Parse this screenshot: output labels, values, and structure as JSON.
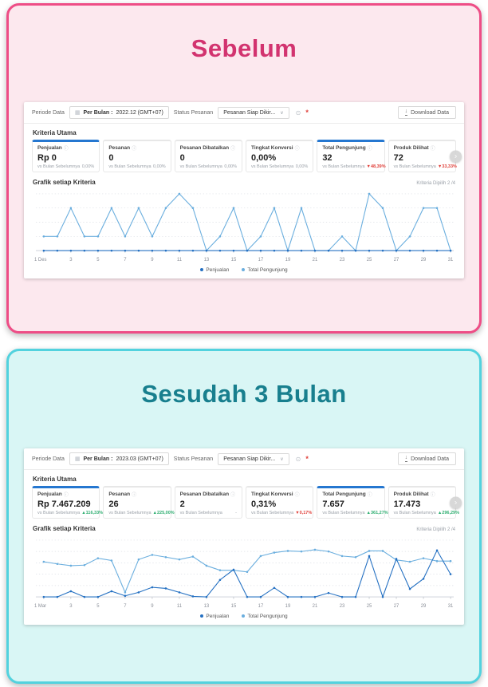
{
  "icons": {
    "calendar": "▦",
    "dropdown": "∨",
    "help": "⊙",
    "required": "*",
    "download": "↓",
    "chevron_right": "›",
    "info": "ⓘ"
  },
  "colors": {
    "before_border": "#ee4d86",
    "before_bg": "#fce8ee",
    "before_title": "#d2336f",
    "after_border": "#52d2de",
    "after_bg": "#d9f6f5",
    "after_title": "#187f8e",
    "active_card_accent": "#2577d0",
    "negative": "#e0403a",
    "positive": "#2fae71"
  },
  "panels": [
    {
      "title": "Sebelum",
      "dashboard": {
        "filter": {
          "periode_label": "Periode Data",
          "periode_prefix": "Per Bulan :",
          "periode_value": "2022.12 (GMT+07)",
          "status_label": "Status Pesanan",
          "status_value": "Pesanan Siap Dikir...",
          "download_label": "Download Data"
        },
        "kriteria_heading": "Kriteria Utama",
        "metrics": [
          {
            "label": "Penjualan",
            "value": "Rp 0",
            "vs_label": "vs Bulan Sebelumnya",
            "change": "0,00%",
            "direction": "flat",
            "active": true
          },
          {
            "label": "Pesanan",
            "value": "0",
            "vs_label": "vs Bulan Sebelumnya",
            "change": "0,00%",
            "direction": "flat",
            "active": false
          },
          {
            "label": "Pesanan Dibatalkan",
            "value": "0",
            "vs_label": "vs Bulan Sebelumnya",
            "change": "0,00%",
            "direction": "flat",
            "active": false
          },
          {
            "label": "Tingkat Konversi",
            "value": "0,00%",
            "vs_label": "vs Bulan Sebelumnya",
            "change": "0,00%",
            "direction": "flat",
            "active": false
          },
          {
            "label": "Total Pengunjung",
            "value": "32",
            "vs_label": "vs Bulan Sebelumnya",
            "change": "▼48,39%",
            "direction": "down",
            "active": true
          },
          {
            "label": "Produk Dilihat",
            "value": "72",
            "vs_label": "vs Bulan Sebelumnya",
            "change": "▼33,33%",
            "direction": "down",
            "active": false
          }
        ],
        "grafik_heading": "Grafik setiap Kriteria",
        "kriteria_dipilih": "Kriteria Dipilih 2 /4"
      }
    },
    {
      "title": "Sesudah 3 Bulan",
      "dashboard": {
        "filter": {
          "periode_label": "Periode Data",
          "periode_prefix": "Per Bulan :",
          "periode_value": "2023.03 (GMT+07)",
          "status_label": "Status Pesanan",
          "status_value": "Pesanan Siap Dikir...",
          "download_label": "Download Data"
        },
        "kriteria_heading": "Kriteria Utama",
        "metrics": [
          {
            "label": "Penjualan",
            "value": "Rp 7.467.209",
            "vs_label": "vs Bulan Sebelumnya",
            "change": "▲116,33%",
            "direction": "up",
            "active": true
          },
          {
            "label": "Pesanan",
            "value": "26",
            "vs_label": "vs Bulan Sebelumnya",
            "change": "▲225,00%",
            "direction": "up",
            "active": false
          },
          {
            "label": "Pesanan Dibatalkan",
            "value": "2",
            "vs_label": "vs Bulan Sebelumnya",
            "change": "-",
            "direction": "none",
            "active": false
          },
          {
            "label": "Tingkat Konversi",
            "value": "0,31%",
            "vs_label": "vs Bulan Sebelumnya",
            "change": "▼0,17%",
            "direction": "down",
            "active": false
          },
          {
            "label": "Total Pengunjung",
            "value": "7.657",
            "vs_label": "vs Bulan Sebelumnya",
            "change": "▲361,27%",
            "direction": "up",
            "active": true
          },
          {
            "label": "Produk Dilihat",
            "value": "17.473",
            "vs_label": "vs Bulan Sebelumnya",
            "change": "▲296,29%",
            "direction": "up",
            "active": false
          }
        ],
        "grafik_heading": "Grafik setiap Kriteria",
        "kriteria_dipilih": "Kriteria Dipilih 2 /4"
      }
    }
  ],
  "chart_data": [
    {
      "type": "line",
      "title": "Grafik setiap Kriteria — Desember 2022 (Sebelum)",
      "xlabel": "",
      "ylabel": "",
      "x": [
        1,
        2,
        3,
        4,
        5,
        6,
        7,
        8,
        9,
        10,
        11,
        12,
        13,
        14,
        15,
        16,
        17,
        18,
        19,
        20,
        21,
        22,
        23,
        24,
        25,
        26,
        27,
        28,
        29,
        30,
        31
      ],
      "x_tick_labels": [
        "1 Des",
        "",
        "3",
        "",
        "5",
        "",
        "7",
        "",
        "9",
        "",
        "11",
        "",
        "13",
        "",
        "15",
        "",
        "17",
        "",
        "19",
        "",
        "21",
        "",
        "23",
        "",
        "25",
        "",
        "27",
        "",
        "29",
        "",
        "31"
      ],
      "ylim": [
        0,
        4
      ],
      "gridlines": 4,
      "grid": true,
      "legend_position": "bottom",
      "series": [
        {
          "name": "Penjualan",
          "color": "#2470c2",
          "values": [
            0,
            0,
            0,
            0,
            0,
            0,
            0,
            0,
            0,
            0,
            0,
            0,
            0,
            0,
            0,
            0,
            0,
            0,
            0,
            0,
            0,
            0,
            0,
            0,
            0,
            0,
            0,
            0,
            0,
            0,
            0
          ]
        },
        {
          "name": "Total Pengunjung",
          "color": "#6aaede",
          "values": [
            1,
            1,
            3,
            1,
            1,
            3,
            1,
            3,
            1,
            3,
            4,
            3,
            0,
            1,
            3,
            0,
            1,
            3,
            0,
            3,
            0,
            0,
            1,
            0,
            4,
            3,
            0,
            1,
            3,
            3,
            0
          ]
        }
      ]
    },
    {
      "type": "line",
      "title": "Grafik setiap Kriteria — Maret 2023 (Sesudah 3 Bulan)",
      "xlabel": "",
      "ylabel": "",
      "x": [
        1,
        2,
        3,
        4,
        5,
        6,
        7,
        8,
        9,
        10,
        11,
        12,
        13,
        14,
        15,
        16,
        17,
        18,
        19,
        20,
        21,
        22,
        23,
        24,
        25,
        26,
        27,
        28,
        29,
        30,
        31
      ],
      "x_tick_labels": [
        "1 Mar",
        "",
        "3",
        "",
        "5",
        "",
        "7",
        "",
        "9",
        "",
        "11",
        "",
        "13",
        "",
        "15",
        "",
        "17",
        "",
        "19",
        "",
        "21",
        "",
        "23",
        "",
        "25",
        "",
        "27",
        "",
        "29",
        "",
        "31"
      ],
      "ylim": [
        0,
        100
      ],
      "gridlines": 5,
      "grid": true,
      "legend_position": "bottom",
      "series": [
        {
          "name": "Penjualan",
          "color": "#2470c2",
          "values": [
            0,
            0,
            10,
            0,
            0,
            10,
            2,
            8,
            17,
            15,
            8,
            1,
            0,
            30,
            48,
            0,
            0,
            16,
            0,
            0,
            0,
            7,
            0,
            0,
            72,
            0,
            67,
            14,
            32,
            82,
            40
          ]
        },
        {
          "name": "Total Pengunjung",
          "color": "#6aaede",
          "values": [
            62,
            58,
            55,
            56,
            68,
            64,
            8,
            66,
            74,
            70,
            66,
            71,
            55,
            47,
            47,
            44,
            72,
            78,
            81,
            80,
            83,
            80,
            72,
            70,
            81,
            81,
            65,
            62,
            68,
            63,
            63
          ]
        }
      ]
    }
  ]
}
